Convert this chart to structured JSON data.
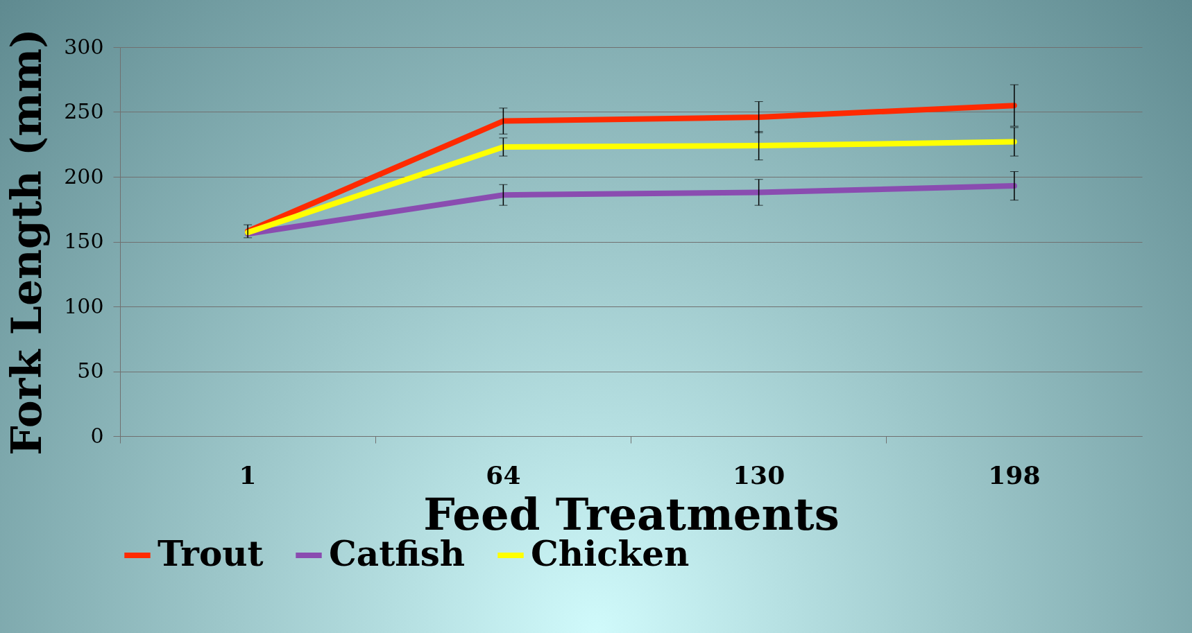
{
  "chart_data": {
    "type": "line",
    "xlabel": "Feed Treatments",
    "ylabel": "Fork Length (mm)",
    "categories": [
      "1",
      "64",
      "130",
      "198"
    ],
    "series": [
      {
        "name": "Trout",
        "color": "#ff2a00",
        "values": [
          158,
          243,
          246,
          255
        ],
        "errors": [
          5,
          10,
          12,
          16
        ]
      },
      {
        "name": "Catfish",
        "color": "#8a4cb0",
        "values": [
          156,
          186,
          188,
          193
        ],
        "errors": [
          null,
          8,
          10,
          11
        ]
      },
      {
        "name": "Chicken",
        "color": "#ffff00",
        "values": [
          157,
          223,
          224,
          227
        ],
        "errors": [
          null,
          7,
          11,
          11
        ]
      }
    ],
    "ylim": [
      0,
      300
    ],
    "yticks": [
      0,
      50,
      100,
      150,
      200,
      250,
      300
    ],
    "grid": "y",
    "legend": "bottom",
    "marker": "none",
    "line_style": "solid"
  }
}
